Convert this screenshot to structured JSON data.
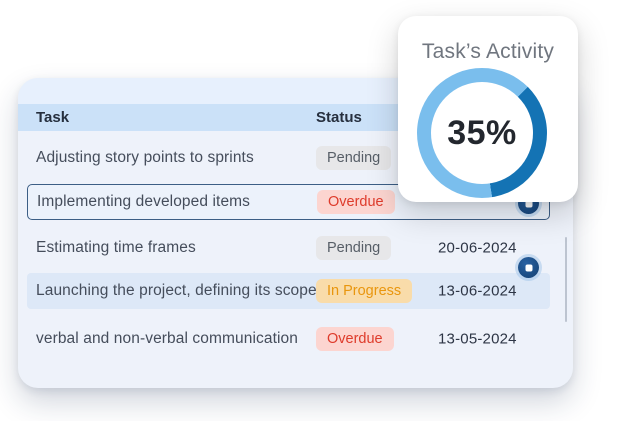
{
  "colors": {
    "donut_dark": "#1473b4",
    "donut_light": "#7abeed",
    "header_bg": "#cbe1f8",
    "card_bg": "#eef2fa",
    "selected_border": "#3c5e85",
    "highlight_bg": "#dde8f7",
    "overdue_text": "#de3b2b",
    "inprogress_text": "#e9960e",
    "pending_text": "#575e67"
  },
  "activity_card": {
    "title": "Task’s Activity",
    "percent": 35,
    "percent_label": "35%"
  },
  "table": {
    "headers": {
      "task": "Task",
      "status": "Status"
    },
    "rows": [
      {
        "task": "Adjusting story points to sprints",
        "status": "Pending",
        "status_type": "pending",
        "date": "",
        "selected": false,
        "highlighted": false
      },
      {
        "task": "Implementing developed items",
        "status": "Overdue",
        "status_type": "overdue",
        "date": "",
        "selected": true,
        "highlighted": false
      },
      {
        "task": "Estimating time frames",
        "status": "Pending",
        "status_type": "pending",
        "date": "20-06-2024",
        "selected": false,
        "highlighted": false
      },
      {
        "task": "Launching the project, defining its scope",
        "status": "In Progress",
        "status_type": "inprogress",
        "date": "13-06-2024",
        "selected": false,
        "highlighted": true
      },
      {
        "task": "verbal and non-verbal communication",
        "status": "Overdue",
        "status_type": "overdue",
        "date": "13-05-2024",
        "selected": false,
        "highlighted": false
      }
    ]
  },
  "chart_data": {
    "type": "pie",
    "title": "Task’s Activity",
    "donut": true,
    "center_label": "35%",
    "segments": [
      {
        "value": 35,
        "color": "#1473b4"
      },
      {
        "value": 65,
        "color": "#7abeed"
      }
    ],
    "legend_position": "none"
  }
}
